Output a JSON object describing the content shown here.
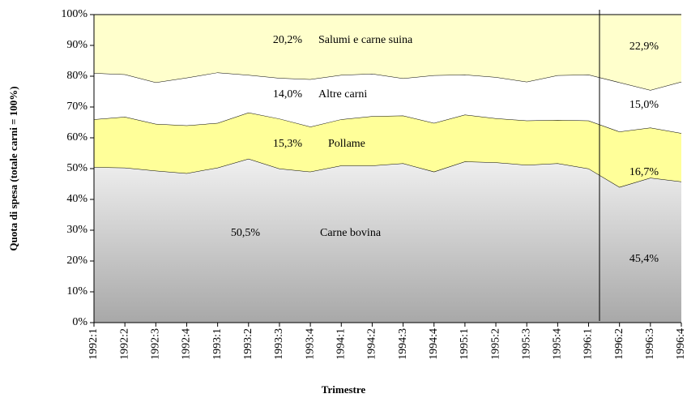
{
  "chart_data": {
    "type": "stacked_area",
    "x_label": "Trimestre",
    "y_label": "Quota di spesa (totale carni = 100%)",
    "categories": [
      "1992:1",
      "1992:2",
      "1992:3",
      "1992:4",
      "1993:1",
      "1993:2",
      "1993:3",
      "1993:4",
      "1994:1",
      "1994:2",
      "1994:3",
      "1994:4",
      "1995:1",
      "1995:2",
      "1995:3",
      "1995:4",
      "1996:1",
      "1996:2",
      "1996:3",
      "1996:4"
    ],
    "series": [
      {
        "name": "Carne bovina",
        "color": "#c8c8c8",
        "values": [
          50.5,
          50.3,
          49.3,
          48.5,
          50.3,
          53.2,
          50.0,
          49.0,
          51.0,
          51.0,
          51.7,
          49.0,
          52.3,
          52.0,
          51.2,
          51.7,
          50.0,
          44.0,
          47.0,
          45.8
        ]
      },
      {
        "name": "Pollame",
        "color": "#ffff99",
        "values": [
          15.5,
          16.5,
          15.2,
          15.5,
          14.5,
          15.0,
          16.2,
          14.6,
          15.0,
          16.0,
          15.5,
          15.8,
          15.2,
          14.3,
          14.4,
          14.1,
          15.6,
          18.0,
          16.3,
          15.7
        ]
      },
      {
        "name": "Altre carni",
        "color": "#ffffff",
        "values": [
          15.0,
          13.8,
          13.5,
          15.5,
          16.4,
          12.2,
          13.2,
          15.4,
          14.4,
          13.8,
          12.1,
          15.5,
          13.0,
          13.4,
          12.6,
          14.5,
          14.9,
          16.0,
          12.2,
          16.7
        ]
      },
      {
        "name": "Salumi e carne suina",
        "color": "#ffffcc",
        "values": [
          19.0,
          19.4,
          22.0,
          20.5,
          18.8,
          19.6,
          20.6,
          21.0,
          19.6,
          19.2,
          20.7,
          19.7,
          19.5,
          20.3,
          21.8,
          19.7,
          19.5,
          22.0,
          24.5,
          21.8
        ]
      }
    ],
    "annotations": [
      "20,2%",
      "14,0%",
      "15,3%",
      "50,5%",
      "22,9%",
      "15,0%",
      "16,7%",
      "45,4%"
    ],
    "ylim": [
      0,
      100
    ],
    "yticks": [
      {
        "value": 0,
        "label": "0%"
      },
      {
        "value": 10,
        "label": "10%"
      },
      {
        "value": 20,
        "label": "20%"
      },
      {
        "value": 30,
        "label": "30%"
      },
      {
        "value": 40,
        "label": "40%"
      },
      {
        "value": 50,
        "label": "50%"
      },
      {
        "value": 60,
        "label": "60%"
      },
      {
        "value": 70,
        "label": "70%"
      },
      {
        "value": 80,
        "label": "80%"
      },
      {
        "value": 90,
        "label": "90%"
      },
      {
        "value": 100,
        "label": "100%"
      }
    ]
  }
}
